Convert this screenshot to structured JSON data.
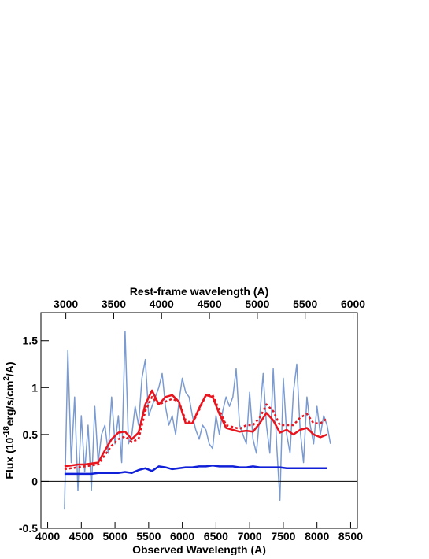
{
  "chart_data": {
    "type": "line",
    "x_label_top": "Rest-frame wavelength (A)",
    "x_label": "Observed Wavelength (A)",
    "y_label": [
      "Flux (10",
      "-18",
      "erg/s/cm",
      "2",
      "/A)"
    ],
    "xlim": [
      3900,
      8600
    ],
    "xticks": [
      4000,
      4500,
      5000,
      5500,
      6000,
      6500,
      7000,
      7500,
      8000,
      8500
    ],
    "x2lim": [
      2740,
      6045
    ],
    "x2ticks": [
      3000,
      3500,
      4000,
      4500,
      5000,
      5500,
      6000
    ],
    "ylim": [
      -0.5,
      1.8
    ],
    "yticks": [
      -0.5,
      0,
      0.5,
      1,
      1.5
    ],
    "hline": 0,
    "series": [
      {
        "color": "#7b9bd0",
        "width": 1.5,
        "dash": false,
        "x": [
          4250,
          4300,
          4350,
          4400,
          4450,
          4500,
          4550,
          4600,
          4650,
          4700,
          4750,
          4800,
          4850,
          4900,
          4950,
          5000,
          5050,
          5100,
          5150,
          5200,
          5250,
          5300,
          5350,
          5400,
          5450,
          5500,
          5550,
          5600,
          5650,
          5700,
          5750,
          5800,
          5850,
          5900,
          5950,
          6000,
          6050,
          6100,
          6150,
          6200,
          6250,
          6300,
          6350,
          6400,
          6450,
          6500,
          6550,
          6600,
          6650,
          6700,
          6750,
          6800,
          6850,
          6900,
          6950,
          7000,
          7050,
          7100,
          7150,
          7200,
          7250,
          7300,
          7350,
          7400,
          7450,
          7500,
          7550,
          7600,
          7650,
          7700,
          7750,
          7800,
          7850,
          7900,
          7950,
          8000,
          8050,
          8100,
          8150,
          8200
        ],
        "values": [
          -0.3,
          1.4,
          0.2,
          0.9,
          -0.1,
          0.7,
          0.1,
          0.6,
          -0.1,
          0.8,
          0.2,
          0.5,
          0.6,
          0.3,
          0.9,
          0.4,
          0.7,
          0.2,
          1.6,
          0.4,
          0.5,
          0.8,
          0.6,
          1.1,
          1.3,
          0.7,
          0.8,
          0.9,
          1.0,
          1.15,
          0.8,
          0.6,
          0.7,
          0.5,
          0.85,
          1.1,
          0.95,
          0.9,
          0.7,
          0.55,
          0.45,
          0.6,
          0.55,
          0.4,
          0.35,
          0.7,
          0.5,
          0.75,
          0.9,
          0.8,
          0.9,
          1.2,
          0.6,
          0.5,
          0.4,
          0.95,
          0.45,
          0.3,
          0.7,
          1.15,
          0.6,
          0.3,
          1.2,
          0.4,
          -0.2,
          1.1,
          0.5,
          0.3,
          0.95,
          1.25,
          0.55,
          0.2,
          0.9,
          0.6,
          0.4,
          0.8,
          0.5,
          0.7,
          0.6,
          0.4
        ]
      },
      {
        "color": "#e8141e",
        "width": 2.5,
        "dash": false,
        "x": [
          4250,
          4350,
          4450,
          4550,
          4650,
          4750,
          4850,
          4950,
          5050,
          5150,
          5250,
          5350,
          5450,
          5550,
          5650,
          5750,
          5850,
          5950,
          6050,
          6150,
          6250,
          6350,
          6450,
          6550,
          6650,
          6750,
          6850,
          6950,
          7050,
          7150,
          7250,
          7350,
          7450,
          7550,
          7650,
          7750,
          7850,
          7950,
          8050,
          8150
        ],
        "values": [
          0.16,
          0.17,
          0.18,
          0.18,
          0.19,
          0.2,
          0.33,
          0.45,
          0.52,
          0.53,
          0.45,
          0.52,
          0.82,
          0.97,
          0.82,
          0.9,
          0.92,
          0.85,
          0.62,
          0.62,
          0.78,
          0.92,
          0.9,
          0.72,
          0.57,
          0.55,
          0.53,
          0.54,
          0.53,
          0.62,
          0.73,
          0.65,
          0.52,
          0.55,
          0.5,
          0.55,
          0.57,
          0.5,
          0.47,
          0.5
        ]
      },
      {
        "color": "#e8141e",
        "width": 2.5,
        "dash": true,
        "x": [
          4250,
          4350,
          4450,
          4550,
          4650,
          4750,
          4850,
          4950,
          5050,
          5150,
          5250,
          5350,
          5450,
          5550,
          5650,
          5750,
          5850,
          5950,
          6050,
          6150,
          6250,
          6350,
          6450,
          6550,
          6650,
          6750,
          6850,
          6950,
          7050,
          7150,
          7250,
          7350,
          7450,
          7550,
          7650,
          7750,
          7850,
          7950,
          8050,
          8150
        ],
        "values": [
          0.13,
          0.14,
          0.15,
          0.16,
          0.17,
          0.18,
          0.28,
          0.38,
          0.45,
          0.48,
          0.42,
          0.45,
          0.75,
          0.9,
          0.82,
          0.85,
          0.88,
          0.85,
          0.65,
          0.62,
          0.76,
          0.92,
          0.92,
          0.76,
          0.6,
          0.58,
          0.56,
          0.6,
          0.6,
          0.68,
          0.82,
          0.75,
          0.6,
          0.6,
          0.6,
          0.68,
          0.72,
          0.62,
          0.62,
          0.67
        ]
      },
      {
        "color": "#1020d8",
        "width": 2.5,
        "dash": false,
        "x": [
          4250,
          4350,
          4450,
          4550,
          4650,
          4750,
          4850,
          4950,
          5050,
          5150,
          5250,
          5350,
          5450,
          5550,
          5650,
          5750,
          5850,
          5950,
          6050,
          6150,
          6250,
          6350,
          6450,
          6550,
          6650,
          6750,
          6850,
          6950,
          7050,
          7150,
          7250,
          7350,
          7450,
          7550,
          7650,
          7750,
          7850,
          7950,
          8050,
          8150
        ],
        "values": [
          0.08,
          0.08,
          0.08,
          0.08,
          0.08,
          0.09,
          0.09,
          0.09,
          0.09,
          0.1,
          0.09,
          0.12,
          0.14,
          0.11,
          0.16,
          0.15,
          0.13,
          0.14,
          0.15,
          0.15,
          0.16,
          0.16,
          0.17,
          0.16,
          0.16,
          0.16,
          0.15,
          0.15,
          0.16,
          0.15,
          0.15,
          0.15,
          0.15,
          0.14,
          0.14,
          0.14,
          0.14,
          0.14,
          0.14,
          0.14
        ]
      }
    ]
  }
}
